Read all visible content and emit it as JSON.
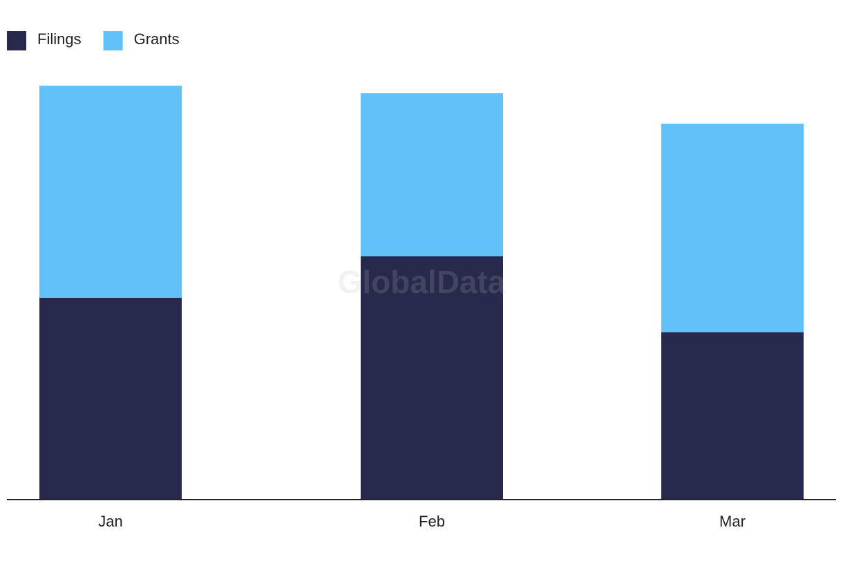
{
  "chart_data": {
    "type": "stacked_bar",
    "watermark": "GlobalData",
    "categories": [
      "Jan",
      "Feb",
      "Mar"
    ],
    "series": [
      {
        "name": "Filings",
        "color": "#272a4c",
        "values": [
          292,
          352,
          242
        ]
      },
      {
        "name": "Grants",
        "color": "#62c1f8",
        "values": [
          307,
          236,
          302
        ]
      }
    ]
  }
}
